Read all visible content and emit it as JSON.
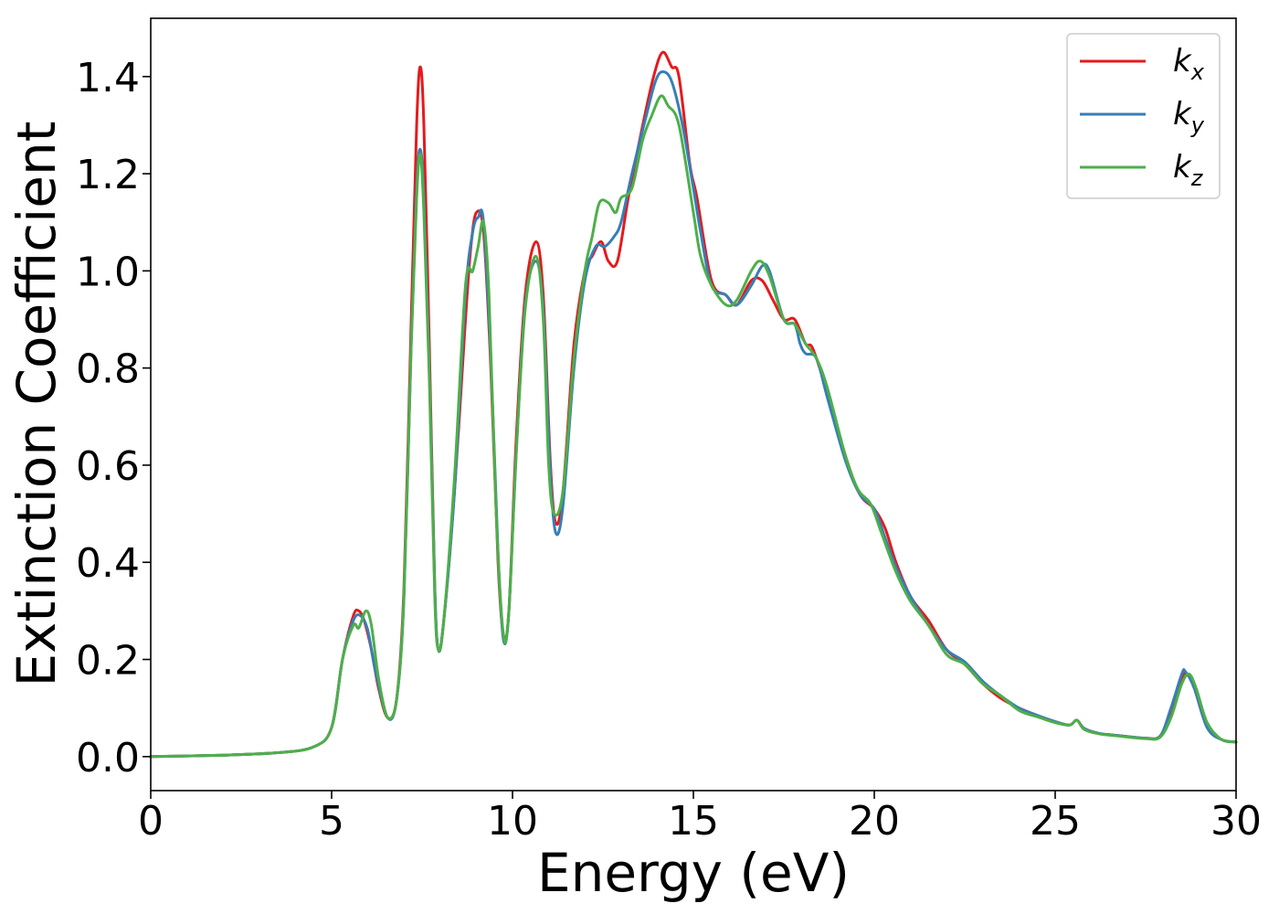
{
  "chart_data": {
    "type": "line",
    "xlabel": "Energy (eV)",
    "ylabel": "Extinction Coefficient",
    "xlim": [
      0,
      30
    ],
    "ylim": [
      -0.07,
      1.52
    ],
    "xticks": [
      0,
      5,
      10,
      15,
      20,
      25,
      30
    ],
    "xtick_labels": [
      "0",
      "5",
      "10",
      "15",
      "20",
      "25",
      "30"
    ],
    "yticks": [
      0.0,
      0.2,
      0.4,
      0.6,
      0.8,
      1.0,
      1.2,
      1.4
    ],
    "ytick_labels": [
      "0.0",
      "0.2",
      "0.4",
      "0.6",
      "0.8",
      "1.0",
      "1.2",
      "1.4"
    ],
    "grid": false,
    "legend_position": "top-right",
    "series": [
      {
        "name": "k_x",
        "label_main": "k",
        "label_sub": "x",
        "color": "#e41a1c",
        "points": [
          [
            0,
            0.0
          ],
          [
            2,
            0.003
          ],
          [
            3.5,
            0.008
          ],
          [
            4.5,
            0.02
          ],
          [
            5.0,
            0.06
          ],
          [
            5.3,
            0.2
          ],
          [
            5.6,
            0.29
          ],
          [
            5.75,
            0.3
          ],
          [
            5.9,
            0.28
          ],
          [
            6.1,
            0.22
          ],
          [
            6.3,
            0.14
          ],
          [
            6.55,
            0.08
          ],
          [
            6.8,
            0.12
          ],
          [
            7.0,
            0.35
          ],
          [
            7.2,
            0.9
          ],
          [
            7.35,
            1.3
          ],
          [
            7.45,
            1.42
          ],
          [
            7.55,
            1.3
          ],
          [
            7.7,
            0.85
          ],
          [
            7.85,
            0.35
          ],
          [
            7.95,
            0.22
          ],
          [
            8.1,
            0.28
          ],
          [
            8.4,
            0.55
          ],
          [
            8.7,
            0.9
          ],
          [
            8.85,
            1.05
          ],
          [
            9.0,
            1.12
          ],
          [
            9.2,
            1.08
          ],
          [
            9.4,
            0.8
          ],
          [
            9.6,
            0.4
          ],
          [
            9.75,
            0.25
          ],
          [
            9.9,
            0.3
          ],
          [
            10.1,
            0.65
          ],
          [
            10.35,
            0.95
          ],
          [
            10.65,
            1.06
          ],
          [
            10.85,
            0.95
          ],
          [
            11.05,
            0.6
          ],
          [
            11.2,
            0.48
          ],
          [
            11.4,
            0.55
          ],
          [
            11.7,
            0.85
          ],
          [
            12.0,
            1.0
          ],
          [
            12.2,
            1.03
          ],
          [
            12.45,
            1.06
          ],
          [
            12.65,
            1.02
          ],
          [
            12.9,
            1.02
          ],
          [
            13.2,
            1.15
          ],
          [
            13.6,
            1.3
          ],
          [
            13.9,
            1.4
          ],
          [
            14.15,
            1.45
          ],
          [
            14.4,
            1.42
          ],
          [
            14.6,
            1.4
          ],
          [
            14.9,
            1.22
          ],
          [
            15.1,
            1.15
          ],
          [
            15.5,
            0.98
          ],
          [
            15.9,
            0.95
          ],
          [
            16.2,
            0.93
          ],
          [
            16.6,
            0.98
          ],
          [
            16.9,
            0.98
          ],
          [
            17.2,
            0.94
          ],
          [
            17.5,
            0.9
          ],
          [
            17.8,
            0.9
          ],
          [
            18.1,
            0.85
          ],
          [
            18.3,
            0.84
          ],
          [
            18.7,
            0.75
          ],
          [
            19.2,
            0.62
          ],
          [
            19.6,
            0.54
          ],
          [
            20.0,
            0.51
          ],
          [
            20.3,
            0.47
          ],
          [
            20.6,
            0.4
          ],
          [
            21.0,
            0.33
          ],
          [
            21.5,
            0.28
          ],
          [
            22.0,
            0.22
          ],
          [
            22.5,
            0.19
          ],
          [
            23.0,
            0.15
          ],
          [
            23.5,
            0.12
          ],
          [
            24.0,
            0.1
          ],
          [
            24.5,
            0.085
          ],
          [
            25.0,
            0.072
          ],
          [
            25.4,
            0.065
          ],
          [
            25.6,
            0.075
          ],
          [
            25.8,
            0.058
          ],
          [
            26.2,
            0.048
          ],
          [
            26.8,
            0.043
          ],
          [
            27.5,
            0.038
          ],
          [
            27.9,
            0.042
          ],
          [
            28.2,
            0.09
          ],
          [
            28.5,
            0.16
          ],
          [
            28.65,
            0.17
          ],
          [
            28.85,
            0.14
          ],
          [
            29.2,
            0.06
          ],
          [
            29.6,
            0.035
          ],
          [
            30.0,
            0.03
          ]
        ]
      },
      {
        "name": "k_y",
        "label_main": "k",
        "label_sub": "y",
        "color": "#377eb8",
        "points": [
          [
            0,
            0.0
          ],
          [
            2,
            0.003
          ],
          [
            3.5,
            0.008
          ],
          [
            4.5,
            0.02
          ],
          [
            5.0,
            0.06
          ],
          [
            5.3,
            0.2
          ],
          [
            5.6,
            0.28
          ],
          [
            5.8,
            0.29
          ],
          [
            6.0,
            0.26
          ],
          [
            6.2,
            0.18
          ],
          [
            6.55,
            0.08
          ],
          [
            6.8,
            0.12
          ],
          [
            7.0,
            0.33
          ],
          [
            7.2,
            0.85
          ],
          [
            7.35,
            1.17
          ],
          [
            7.45,
            1.25
          ],
          [
            7.55,
            1.15
          ],
          [
            7.7,
            0.8
          ],
          [
            7.85,
            0.35
          ],
          [
            7.95,
            0.22
          ],
          [
            8.1,
            0.28
          ],
          [
            8.4,
            0.55
          ],
          [
            8.7,
            0.95
          ],
          [
            8.9,
            1.08
          ],
          [
            9.05,
            1.11
          ],
          [
            9.2,
            1.1
          ],
          [
            9.4,
            0.82
          ],
          [
            9.6,
            0.42
          ],
          [
            9.75,
            0.24
          ],
          [
            9.9,
            0.3
          ],
          [
            10.1,
            0.62
          ],
          [
            10.35,
            0.93
          ],
          [
            10.65,
            1.02
          ],
          [
            10.85,
            0.92
          ],
          [
            11.05,
            0.58
          ],
          [
            11.2,
            0.46
          ],
          [
            11.4,
            0.52
          ],
          [
            11.7,
            0.8
          ],
          [
            12.0,
            0.98
          ],
          [
            12.3,
            1.05
          ],
          [
            12.55,
            1.05
          ],
          [
            12.8,
            1.07
          ],
          [
            13.0,
            1.1
          ],
          [
            13.3,
            1.2
          ],
          [
            13.7,
            1.32
          ],
          [
            13.95,
            1.39
          ],
          [
            14.15,
            1.41
          ],
          [
            14.4,
            1.39
          ],
          [
            14.7,
            1.3
          ],
          [
            15.0,
            1.17
          ],
          [
            15.2,
            1.08
          ],
          [
            15.5,
            0.97
          ],
          [
            15.9,
            0.95
          ],
          [
            16.2,
            0.93
          ],
          [
            16.6,
            0.97
          ],
          [
            16.9,
            1.01
          ],
          [
            17.1,
            1.0
          ],
          [
            17.5,
            0.9
          ],
          [
            17.8,
            0.89
          ],
          [
            17.95,
            0.85
          ],
          [
            18.1,
            0.83
          ],
          [
            18.4,
            0.82
          ],
          [
            18.7,
            0.74
          ],
          [
            19.2,
            0.61
          ],
          [
            19.6,
            0.54
          ],
          [
            20.0,
            0.51
          ],
          [
            20.3,
            0.45
          ],
          [
            20.6,
            0.39
          ],
          [
            21.0,
            0.33
          ],
          [
            21.5,
            0.27
          ],
          [
            22.0,
            0.22
          ],
          [
            22.5,
            0.195
          ],
          [
            23.0,
            0.155
          ],
          [
            23.5,
            0.125
          ],
          [
            24.0,
            0.1
          ],
          [
            24.5,
            0.085
          ],
          [
            25.0,
            0.072
          ],
          [
            25.4,
            0.065
          ],
          [
            25.6,
            0.075
          ],
          [
            25.8,
            0.058
          ],
          [
            26.2,
            0.048
          ],
          [
            26.8,
            0.043
          ],
          [
            27.5,
            0.038
          ],
          [
            27.9,
            0.042
          ],
          [
            28.2,
            0.1
          ],
          [
            28.5,
            0.17
          ],
          [
            28.6,
            0.175
          ],
          [
            28.85,
            0.14
          ],
          [
            29.2,
            0.06
          ],
          [
            29.6,
            0.035
          ],
          [
            30.0,
            0.03
          ]
        ]
      },
      {
        "name": "k_z",
        "label_main": "k",
        "label_sub": "z",
        "color": "#4daf4a",
        "points": [
          [
            0,
            0.0
          ],
          [
            2,
            0.003
          ],
          [
            3.5,
            0.008
          ],
          [
            4.5,
            0.02
          ],
          [
            5.0,
            0.06
          ],
          [
            5.3,
            0.2
          ],
          [
            5.6,
            0.27
          ],
          [
            5.75,
            0.265
          ],
          [
            5.95,
            0.3
          ],
          [
            6.1,
            0.27
          ],
          [
            6.3,
            0.16
          ],
          [
            6.55,
            0.08
          ],
          [
            6.8,
            0.12
          ],
          [
            7.0,
            0.33
          ],
          [
            7.2,
            0.85
          ],
          [
            7.35,
            1.15
          ],
          [
            7.45,
            1.24
          ],
          [
            7.55,
            1.12
          ],
          [
            7.7,
            0.78
          ],
          [
            7.85,
            0.33
          ],
          [
            7.95,
            0.22
          ],
          [
            8.1,
            0.28
          ],
          [
            8.4,
            0.58
          ],
          [
            8.7,
            0.97
          ],
          [
            8.9,
            1.0
          ],
          [
            9.05,
            1.05
          ],
          [
            9.2,
            1.1
          ],
          [
            9.35,
            0.95
          ],
          [
            9.55,
            0.5
          ],
          [
            9.75,
            0.25
          ],
          [
            9.9,
            0.3
          ],
          [
            10.1,
            0.62
          ],
          [
            10.35,
            0.92
          ],
          [
            10.65,
            1.03
          ],
          [
            10.85,
            0.9
          ],
          [
            11.0,
            0.6
          ],
          [
            11.15,
            0.5
          ],
          [
            11.4,
            0.55
          ],
          [
            11.7,
            0.82
          ],
          [
            12.0,
            1.0
          ],
          [
            12.2,
            1.07
          ],
          [
            12.4,
            1.14
          ],
          [
            12.65,
            1.14
          ],
          [
            12.85,
            1.12
          ],
          [
            13.0,
            1.15
          ],
          [
            13.3,
            1.17
          ],
          [
            13.6,
            1.27
          ],
          [
            13.85,
            1.32
          ],
          [
            14.1,
            1.36
          ],
          [
            14.3,
            1.34
          ],
          [
            14.6,
            1.3
          ],
          [
            15.0,
            1.12
          ],
          [
            15.2,
            1.03
          ],
          [
            15.5,
            0.97
          ],
          [
            15.9,
            0.93
          ],
          [
            16.2,
            0.94
          ],
          [
            16.6,
            1.0
          ],
          [
            16.85,
            1.02
          ],
          [
            17.1,
            0.99
          ],
          [
            17.5,
            0.9
          ],
          [
            17.8,
            0.89
          ],
          [
            18.1,
            0.85
          ],
          [
            18.4,
            0.82
          ],
          [
            18.7,
            0.76
          ],
          [
            19.2,
            0.62
          ],
          [
            19.55,
            0.55
          ],
          [
            19.9,
            0.52
          ],
          [
            20.2,
            0.46
          ],
          [
            20.6,
            0.38
          ],
          [
            21.0,
            0.32
          ],
          [
            21.5,
            0.27
          ],
          [
            22.0,
            0.21
          ],
          [
            22.5,
            0.19
          ],
          [
            23.0,
            0.15
          ],
          [
            23.5,
            0.125
          ],
          [
            24.0,
            0.095
          ],
          [
            24.5,
            0.082
          ],
          [
            25.0,
            0.07
          ],
          [
            25.4,
            0.065
          ],
          [
            25.6,
            0.075
          ],
          [
            25.8,
            0.056
          ],
          [
            26.2,
            0.047
          ],
          [
            26.8,
            0.042
          ],
          [
            27.5,
            0.037
          ],
          [
            27.9,
            0.04
          ],
          [
            28.2,
            0.08
          ],
          [
            28.5,
            0.15
          ],
          [
            28.7,
            0.17
          ],
          [
            28.9,
            0.14
          ],
          [
            29.2,
            0.07
          ],
          [
            29.6,
            0.035
          ],
          [
            30.0,
            0.03
          ]
        ]
      }
    ]
  }
}
